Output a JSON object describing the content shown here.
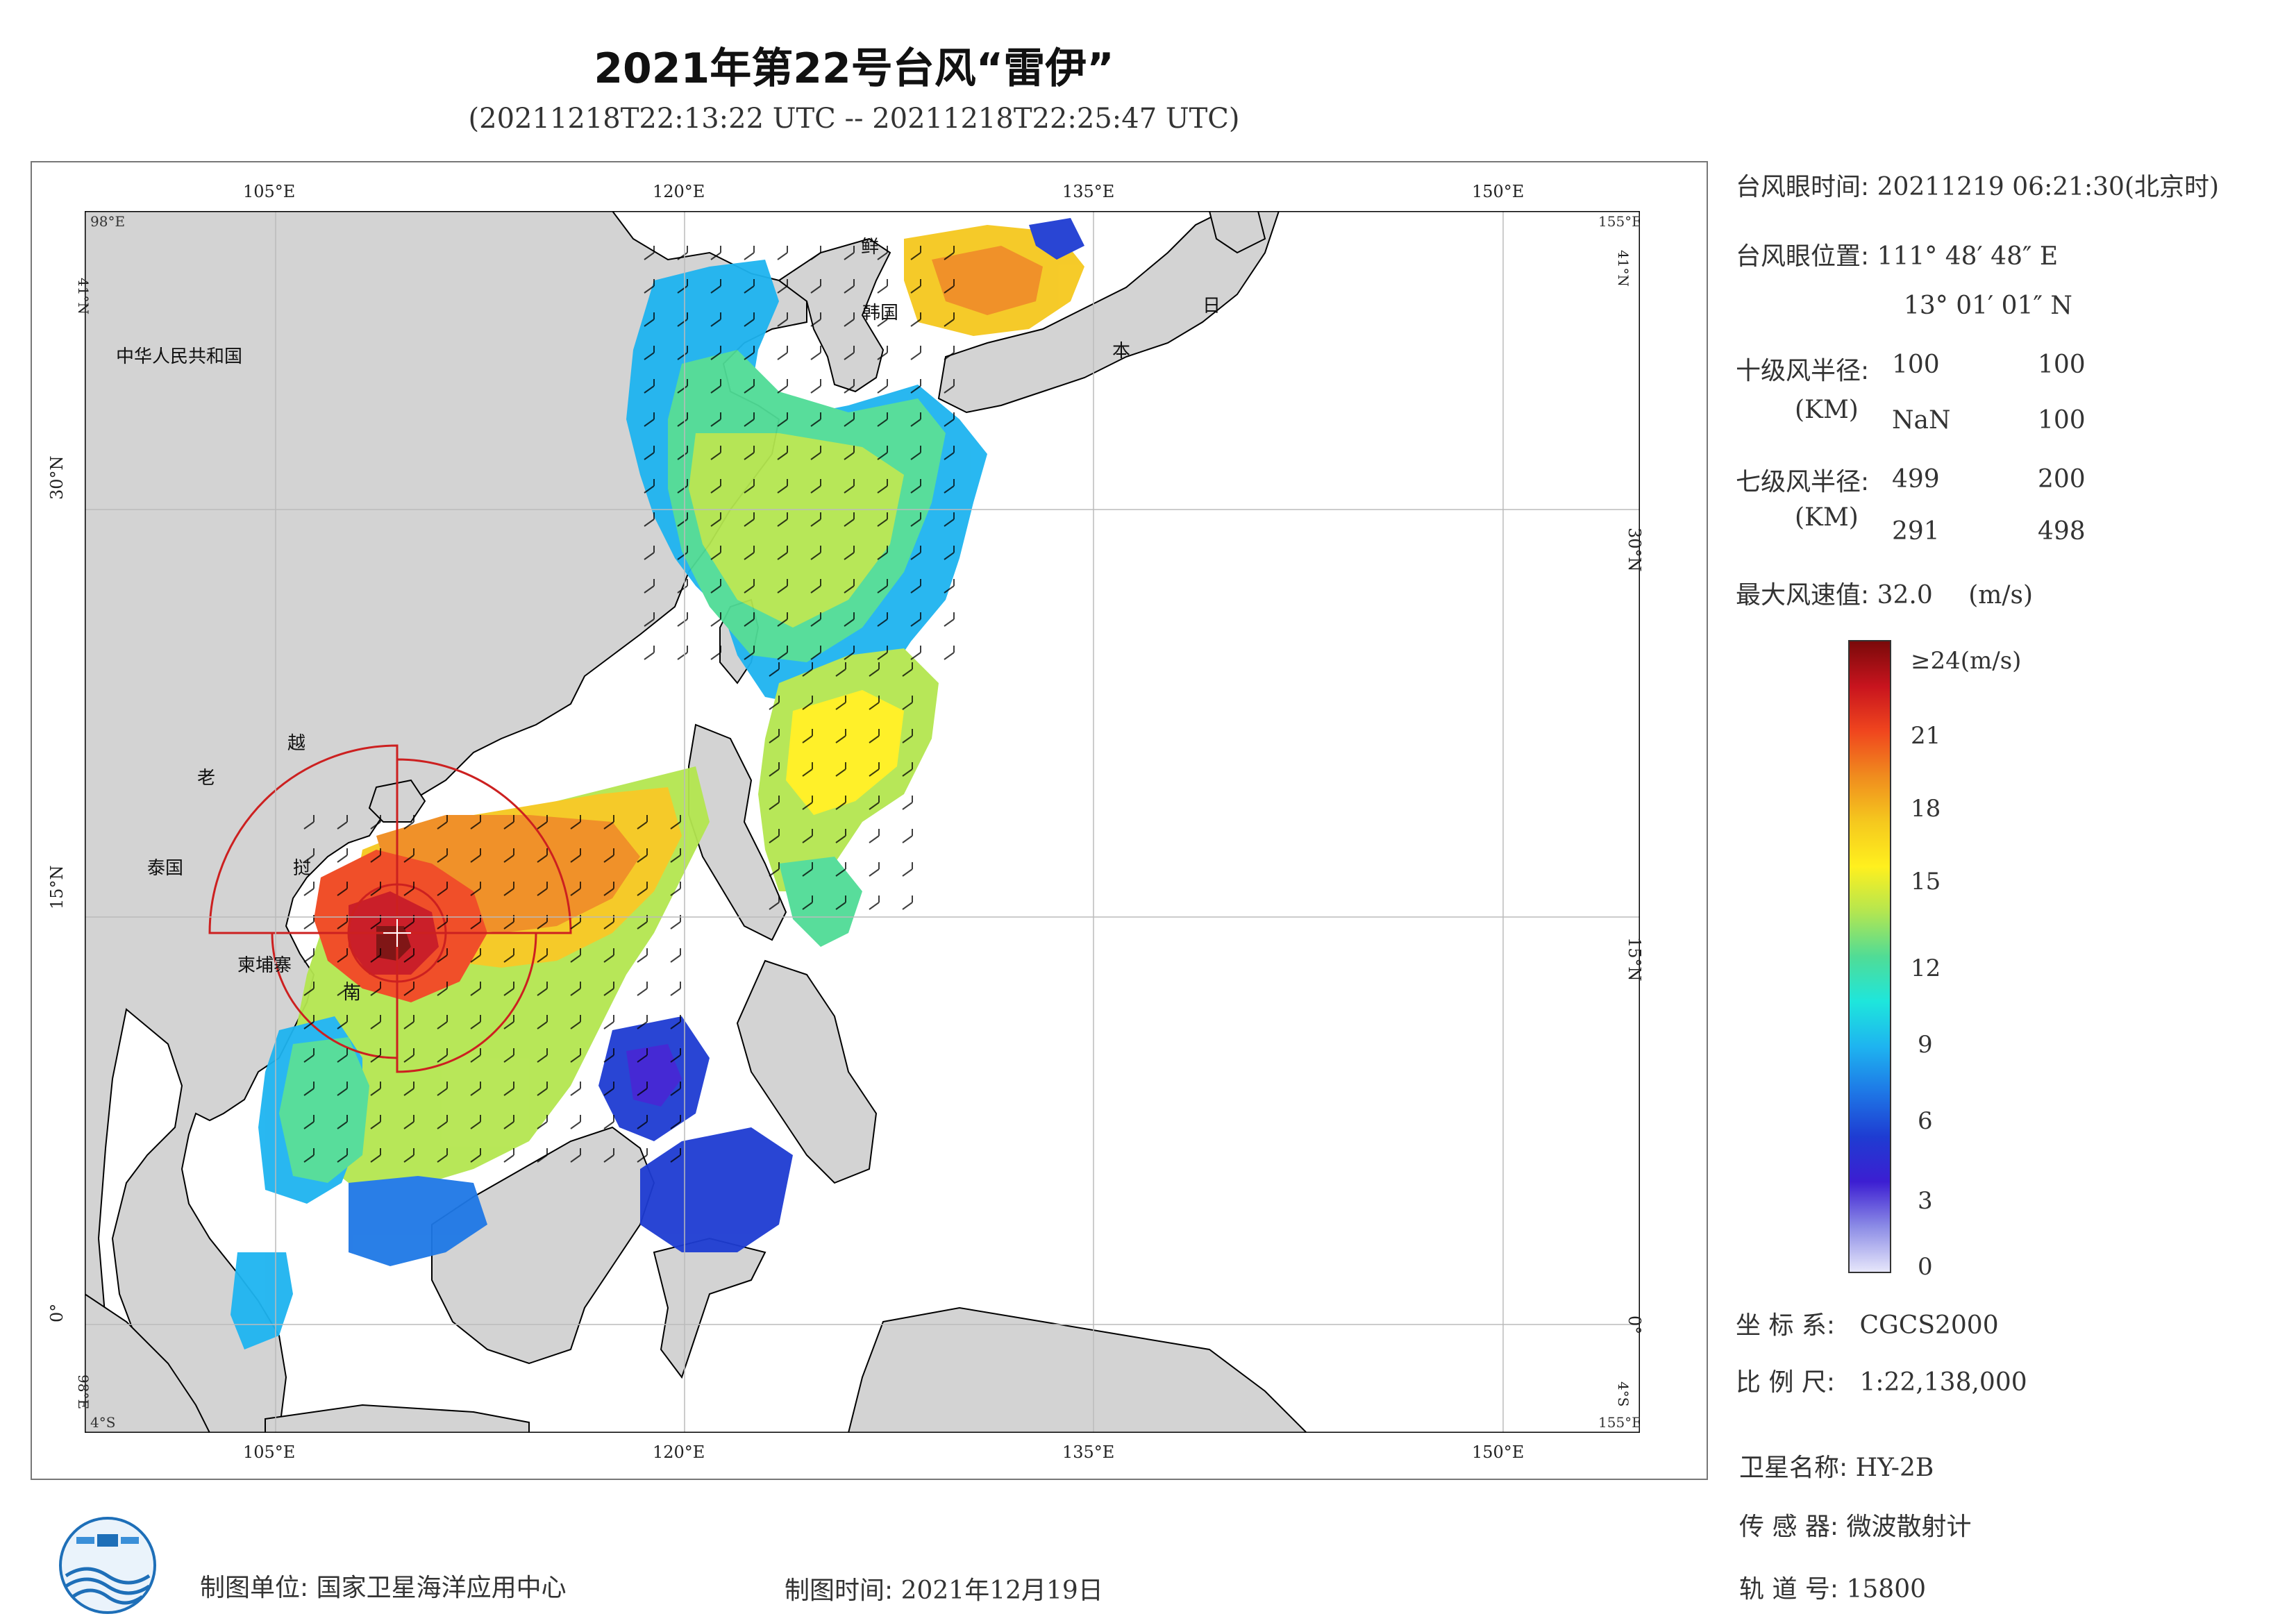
{
  "title": "2021年第22号台风“雷伊”",
  "subtitle": "(20211218T22:13:22 UTC -- 20211218T22:25:47 UTC)",
  "map": {
    "lon_labels": [
      "105°E",
      "120°E",
      "135°E",
      "150°E"
    ],
    "lat_labels": [
      "30°N",
      "15°N",
      "0°"
    ],
    "corner_labels": {
      "top_left": "98°E",
      "top_right": "155°E",
      "top_left_lat": "41°N",
      "top_right_lat": "41°N",
      "bottom_left_lon": "98°E",
      "bottom_left_lat": "4°S",
      "bottom_right_lon": "155°E",
      "bottom_right_lat": "4°S"
    },
    "country_labels": [
      "中华人民共和国",
      "老",
      "越",
      "泰国",
      "挝",
      "柬埔寨",
      "南",
      "鲜",
      "韩国",
      "日",
      "本"
    ],
    "typhoon_center": {
      "lon": 111.813,
      "lat": 13.017
    },
    "colors": {
      "land": "#d3d3d3",
      "sea": "#ffffff",
      "coast": "#000000",
      "wind_circle": "#cc2020"
    }
  },
  "info": {
    "eye_time_label": "台风眼时间:",
    "eye_time_value": "20211219 06:21:30(北京时)",
    "eye_pos_label": "台风眼位置:",
    "eye_lon": "111° 48′ 48″ E",
    "eye_lat": "13° 01′ 01″ N",
    "r10_label": "十级风半径:",
    "r10_unit": "(KM)",
    "r10_values": [
      "100",
      "100",
      "NaN",
      "100"
    ],
    "r7_label": "七级风半径:",
    "r7_unit": "(KM)",
    "r7_values": [
      "499",
      "200",
      "291",
      "498"
    ],
    "max_wind_label": "最大风速值:",
    "max_wind_value": "32.0",
    "max_wind_unit": "(m/s)"
  },
  "colorbar": {
    "top_label": "≥24(m/s)",
    "ticks": [
      "21",
      "18",
      "15",
      "12",
      "9",
      "6",
      "3",
      "0"
    ],
    "stops": [
      "#7a0a0a",
      "#c8141e",
      "#f0461e",
      "#f08c1e",
      "#f5c81e",
      "#fff01e",
      "#b4e650",
      "#50dc96",
      "#1ee6dc",
      "#1eb4f0",
      "#1e78e6",
      "#1e3cd2",
      "#3c1ed2",
      "#8c8ce6",
      "#e6e6fa"
    ]
  },
  "meta": {
    "crs_label": "坐 标 系:",
    "crs_value": "CGCS2000",
    "scale_label": "比 例 尺:",
    "scale_value": "1:22,138,000",
    "satellite_label": "卫星名称:",
    "satellite_value": "HY-2B",
    "sensor_label": "传 感 器:",
    "sensor_value": "微波散射计",
    "orbit_label": "轨 道 号:",
    "orbit_value": "15800"
  },
  "footer": {
    "unit_label": "制图单位:",
    "unit_value": "国家卫星海洋应用中心",
    "time_label": "制图时间:",
    "time_value": "2021年12月19日",
    "logo_icon": "satellite-ocean-logo-icon"
  }
}
